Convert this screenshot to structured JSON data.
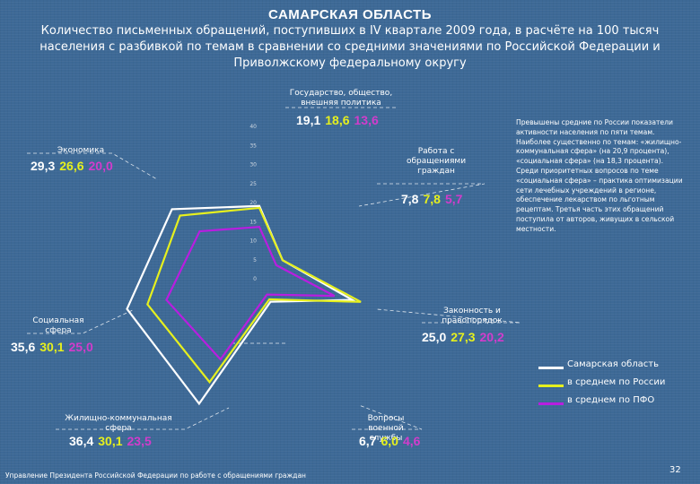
{
  "header": {
    "title": "САМАРСКАЯ ОБЛАСТЬ",
    "subtitle": "Количество письменных обращений, поступивших в IV квартале 2009 года, в расчёте на 100 тысяч населения с разбивкой по темам в сравнении со средними значениями по Российской Федерации и Приволжскому федеральному округу"
  },
  "chart_data": {
    "type": "radar",
    "categories": [
      "Государство, общество, внешняя политика",
      "Работа с обращениями граждан",
      "Законность и правопорядок",
      "Вопросы военной службы",
      "Жилищно-коммунальная сфера",
      "Социальная сфера",
      "Экономика"
    ],
    "series": [
      {
        "name": "Самарская область",
        "values": [
          19.1,
          7.8,
          25.0,
          6.7,
          36.4,
          35.6,
          29.3
        ],
        "display": [
          "19,1",
          "7,8",
          "25,0",
          "6,7",
          "36,4",
          "35,6",
          "29,3"
        ]
      },
      {
        "name": "в среднем по России",
        "values": [
          18.6,
          7.8,
          27.3,
          6.0,
          30.1,
          30.1,
          26.6
        ],
        "display": [
          "18,6",
          "7,8",
          "27,3",
          "6,0",
          "30,1",
          "30,1",
          "26,6"
        ]
      },
      {
        "name": "в среднем по ПФО",
        "values": [
          13.6,
          5.7,
          20.2,
          4.6,
          23.5,
          25.0,
          20.0
        ],
        "display": [
          "13,6",
          "5,7",
          "20,2",
          "4,6",
          "23,5",
          "25,0",
          "20,0"
        ]
      }
    ],
    "rlim": [
      0,
      40
    ],
    "ticks": [
      "0",
      "5",
      "10",
      "15",
      "20",
      "25",
      "30",
      "35",
      "40"
    ],
    "colors": [
      "#ffffff",
      "#e6f01e",
      "#b81ee0"
    ]
  },
  "labels": {
    "politics": "Государство, общество, внешняя политика",
    "work": "Работа с обращениями граждан",
    "law": "Законность и правопорядок",
    "military": "Вопросы военной службы",
    "housing": "Жилищно-коммунальная сфера",
    "social": "Социальная сфера",
    "economy": "Экономика"
  },
  "note": "Превышены средние по России показатели активности населения по пяти темам. Наиболее существенно по темам: «жилищно-коммунальная сфера» (на 20,9 процента), «социальная сфера» (на 18,3 процента). Среди приоритетных вопросов по теме «социальная сфера» – практика оптимизации сети лечебных учреждений в регионе, обеспечение лекарством по льготным рецептам. Третья часть этих обращений поступила от авторов, живущих в сельской местности.",
  "legend": [
    "Самарская область",
    "в среднем по России",
    "в среднем по ПФО"
  ],
  "footer": "Управление Президента Российской Федерации по работе с обращениями граждан",
  "page_number": "32"
}
